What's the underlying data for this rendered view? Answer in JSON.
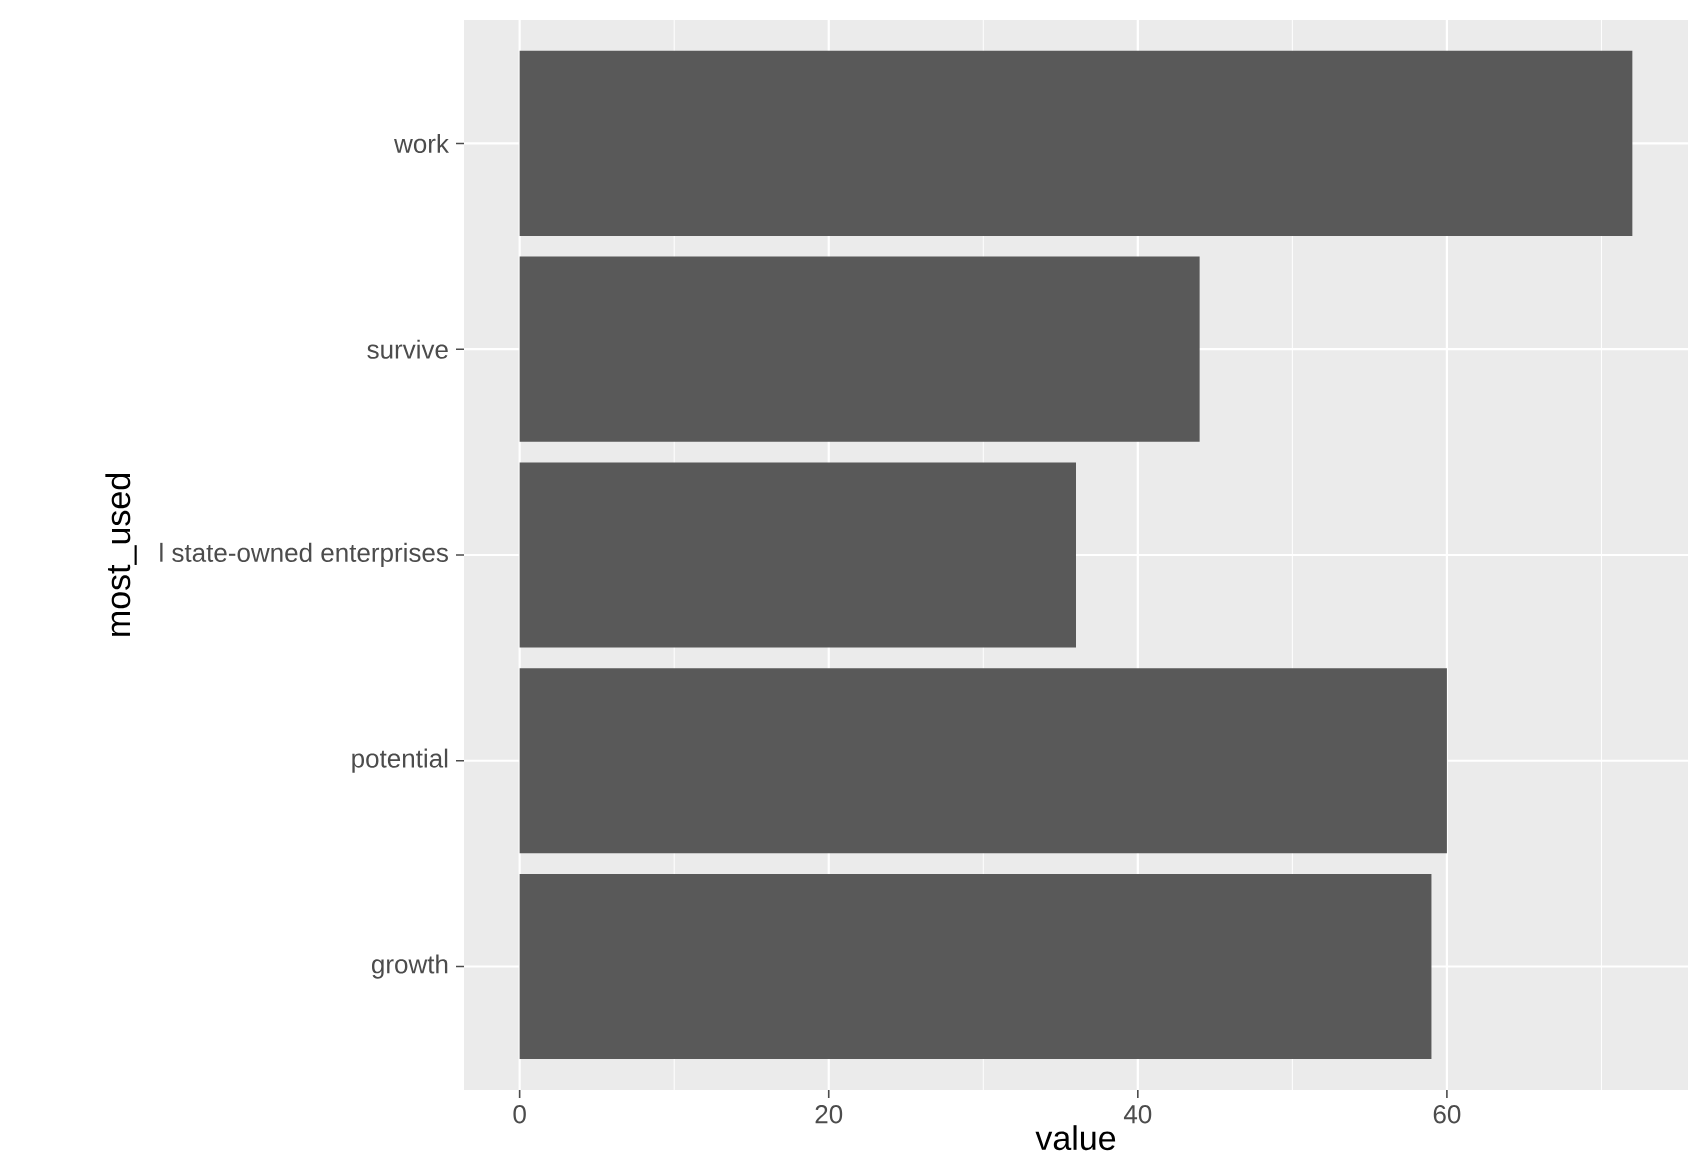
{
  "chart_data": {
    "type": "bar",
    "orientation": "horizontal",
    "xlabel": "value",
    "ylabel": "most_used",
    "categories": [
      "work",
      "survive",
      "l state-owned enterprises",
      "potential",
      "growth"
    ],
    "values": [
      72,
      44,
      36,
      60,
      59
    ],
    "color": "#595959",
    "xlim": [
      -3.6,
      75.6
    ],
    "xticks": [
      0,
      20,
      40,
      60
    ],
    "grid": true
  }
}
